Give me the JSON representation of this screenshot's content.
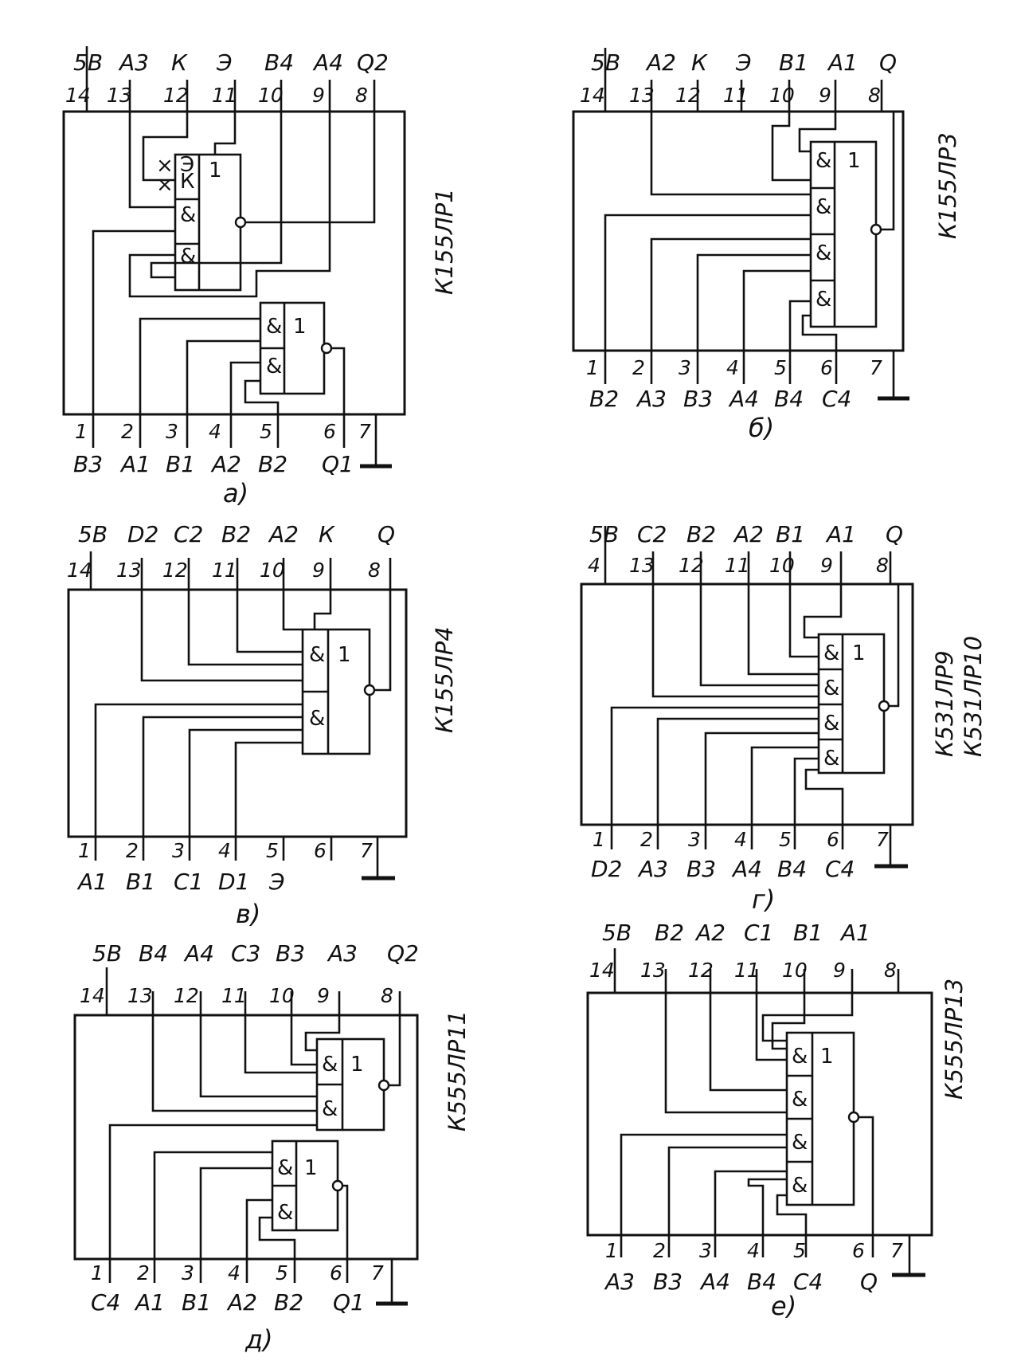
{
  "panels": [
    {
      "id": "a",
      "caption": "а)",
      "chip": "К155ЛР1",
      "top_pins": [
        {
          "num": "14",
          "sig": "5В"
        },
        {
          "num": "13",
          "sig": "А3"
        },
        {
          "num": "12",
          "sig": "К"
        },
        {
          "num": "11",
          "sig": "Э"
        },
        {
          "num": "10",
          "sig": "В4"
        },
        {
          "num": "9",
          "sig": "А4"
        },
        {
          "num": "8",
          "sig": "Q2"
        }
      ],
      "bottom_pins": [
        {
          "num": "1",
          "sig": "В3"
        },
        {
          "num": "2",
          "sig": "А1"
        },
        {
          "num": "3",
          "sig": "В1"
        },
        {
          "num": "4",
          "sig": "А2"
        },
        {
          "num": "5",
          "sig": "В2"
        },
        {
          "num": "6",
          "sig": "Q1"
        },
        {
          "num": "7",
          "sig": ""
        }
      ],
      "gate_labels": [
        "Э",
        "К",
        "&",
        "&",
        "1",
        "&",
        "&",
        "1"
      ]
    },
    {
      "id": "b",
      "caption": "б)",
      "chip": "К155ЛР3",
      "top_pins": [
        {
          "num": "14",
          "sig": "5В"
        },
        {
          "num": "13",
          "sig": "А2"
        },
        {
          "num": "12",
          "sig": "К"
        },
        {
          "num": "11",
          "sig": "Э"
        },
        {
          "num": "10",
          "sig": "В1"
        },
        {
          "num": "9",
          "sig": "А1"
        },
        {
          "num": "8",
          "sig": "Q"
        }
      ],
      "bottom_pins": [
        {
          "num": "1",
          "sig": "В2"
        },
        {
          "num": "2",
          "sig": "А3"
        },
        {
          "num": "3",
          "sig": "В3"
        },
        {
          "num": "4",
          "sig": "А4"
        },
        {
          "num": "5",
          "sig": "В4"
        },
        {
          "num": "6",
          "sig": "С4"
        },
        {
          "num": "7",
          "sig": ""
        }
      ],
      "gate_labels": [
        "&",
        "&",
        "&",
        "&",
        "1"
      ]
    },
    {
      "id": "c",
      "caption": "в)",
      "chip": "К155ЛР4",
      "top_pins": [
        {
          "num": "14",
          "sig": "5В"
        },
        {
          "num": "13",
          "sig": "D2"
        },
        {
          "num": "12",
          "sig": "С2"
        },
        {
          "num": "11",
          "sig": "В2"
        },
        {
          "num": "10",
          "sig": "А2"
        },
        {
          "num": "9",
          "sig": "К"
        },
        {
          "num": "8",
          "sig": "Q"
        }
      ],
      "bottom_pins": [
        {
          "num": "1",
          "sig": "А1"
        },
        {
          "num": "2",
          "sig": "В1"
        },
        {
          "num": "3",
          "sig": "С1"
        },
        {
          "num": "4",
          "sig": "D1"
        },
        {
          "num": "5",
          "sig": "Э"
        },
        {
          "num": "6",
          "sig": ""
        },
        {
          "num": "7",
          "sig": ""
        }
      ],
      "gate_labels": [
        "&",
        "&",
        "1"
      ]
    },
    {
      "id": "d",
      "caption": "г)",
      "chip": "К531ЛР9",
      "chip2": "К531ЛР10",
      "top_pins": [
        {
          "num": "4",
          "sig": "5В"
        },
        {
          "num": "13",
          "sig": "С2"
        },
        {
          "num": "12",
          "sig": "В2"
        },
        {
          "num": "11",
          "sig": "А2"
        },
        {
          "num": "10",
          "sig": "В1"
        },
        {
          "num": "9",
          "sig": "А1"
        },
        {
          "num": "8",
          "sig": "Q"
        }
      ],
      "bottom_pins": [
        {
          "num": "1",
          "sig": "D2"
        },
        {
          "num": "2",
          "sig": "А3"
        },
        {
          "num": "3",
          "sig": "В3"
        },
        {
          "num": "4",
          "sig": "А4"
        },
        {
          "num": "5",
          "sig": "В4"
        },
        {
          "num": "6",
          "sig": "С4"
        },
        {
          "num": "7",
          "sig": ""
        }
      ],
      "gate_labels": [
        "&",
        "&",
        "&",
        "&",
        "1"
      ]
    },
    {
      "id": "e",
      "caption": "д)",
      "chip": "К555ЛР11",
      "top_pins": [
        {
          "num": "14",
          "sig": "5В"
        },
        {
          "num": "13",
          "sig": "В4"
        },
        {
          "num": "12",
          "sig": "А4"
        },
        {
          "num": "11",
          "sig": "С3"
        },
        {
          "num": "10",
          "sig": "В3"
        },
        {
          "num": "9",
          "sig": "А3"
        },
        {
          "num": "8",
          "sig": "Q2"
        }
      ],
      "bottom_pins": [
        {
          "num": "1",
          "sig": "С4"
        },
        {
          "num": "2",
          "sig": "А1"
        },
        {
          "num": "3",
          "sig": "В1"
        },
        {
          "num": "4",
          "sig": "А2"
        },
        {
          "num": "5",
          "sig": "В2"
        },
        {
          "num": "6",
          "sig": "Q1"
        },
        {
          "num": "7",
          "sig": ""
        }
      ],
      "gate_labels": [
        "&",
        "&",
        "1",
        "&",
        "&",
        "1"
      ]
    },
    {
      "id": "f",
      "caption": "е)",
      "chip": "К555ЛР13",
      "top_pins": [
        {
          "num": "14",
          "sig": "5В"
        },
        {
          "num": "13",
          "sig": "В2"
        },
        {
          "num": "12",
          "sig": "А2"
        },
        {
          "num": "11",
          "sig": "С1"
        },
        {
          "num": "10",
          "sig": "В1"
        },
        {
          "num": "9",
          "sig": "А1"
        },
        {
          "num": "8",
          "sig": ""
        }
      ],
      "bottom_pins": [
        {
          "num": "1",
          "sig": "А3"
        },
        {
          "num": "2",
          "sig": "В3"
        },
        {
          "num": "3",
          "sig": "А4"
        },
        {
          "num": "4",
          "sig": "В4"
        },
        {
          "num": "5",
          "sig": "С4"
        },
        {
          "num": "6",
          "sig": "Q"
        },
        {
          "num": "7",
          "sig": ""
        }
      ],
      "gate_labels": [
        "&",
        "&",
        "&",
        "&",
        "1"
      ]
    }
  ]
}
